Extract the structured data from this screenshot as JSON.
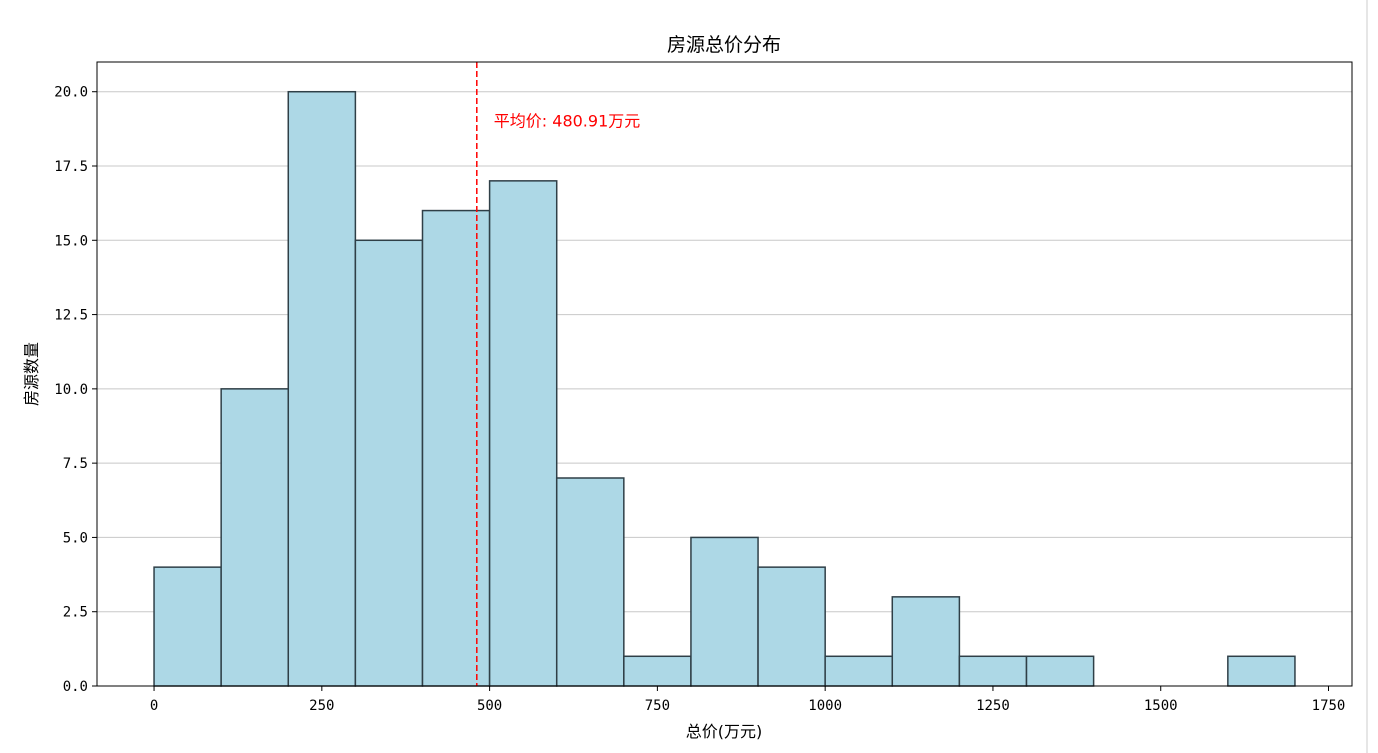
{
  "colors": {
    "bar_fill": "#add8e6",
    "bar_edge": "#2f3f47",
    "mean_line": "#ff0000",
    "grid": "#c8c8c8",
    "axis": "#000000"
  },
  "chart_data": {
    "type": "bar",
    "title": "房源总价分布",
    "xlabel": "总价(万元)",
    "ylabel": "房源数量",
    "xlim": [
      -85,
      1785
    ],
    "ylim": [
      0,
      21
    ],
    "x_ticks": [
      0,
      250,
      500,
      750,
      1000,
      1250,
      1500,
      1750
    ],
    "x_tick_labels": [
      "0",
      "250",
      "500",
      "750",
      "1000",
      "1250",
      "1500",
      "1750"
    ],
    "y_ticks": [
      0,
      2.5,
      5,
      7.5,
      10,
      12.5,
      15,
      17.5,
      20
    ],
    "y_tick_labels": [
      "0.0",
      "2.5",
      "5.0",
      "7.5",
      "10.0",
      "12.5",
      "15.0",
      "17.5",
      "20.0"
    ],
    "grid": "y",
    "bins": [
      {
        "start": 0,
        "end": 100,
        "count": 4
      },
      {
        "start": 100,
        "end": 200,
        "count": 10
      },
      {
        "start": 200,
        "end": 300,
        "count": 20
      },
      {
        "start": 300,
        "end": 400,
        "count": 15
      },
      {
        "start": 400,
        "end": 500,
        "count": 16
      },
      {
        "start": 500,
        "end": 600,
        "count": 17
      },
      {
        "start": 600,
        "end": 700,
        "count": 7
      },
      {
        "start": 700,
        "end": 800,
        "count": 1
      },
      {
        "start": 800,
        "end": 900,
        "count": 5
      },
      {
        "start": 900,
        "end": 1000,
        "count": 4
      },
      {
        "start": 1000,
        "end": 1100,
        "count": 1
      },
      {
        "start": 1100,
        "end": 1200,
        "count": 3
      },
      {
        "start": 1200,
        "end": 1300,
        "count": 1
      },
      {
        "start": 1300,
        "end": 1400,
        "count": 1
      },
      {
        "start": 1400,
        "end": 1500,
        "count": 0
      },
      {
        "start": 1500,
        "end": 1600,
        "count": 0
      },
      {
        "start": 1600,
        "end": 1700,
        "count": 1
      }
    ],
    "mean": {
      "value": 480.91,
      "label": "平均价: 480.91万元",
      "label_y": 19
    }
  }
}
